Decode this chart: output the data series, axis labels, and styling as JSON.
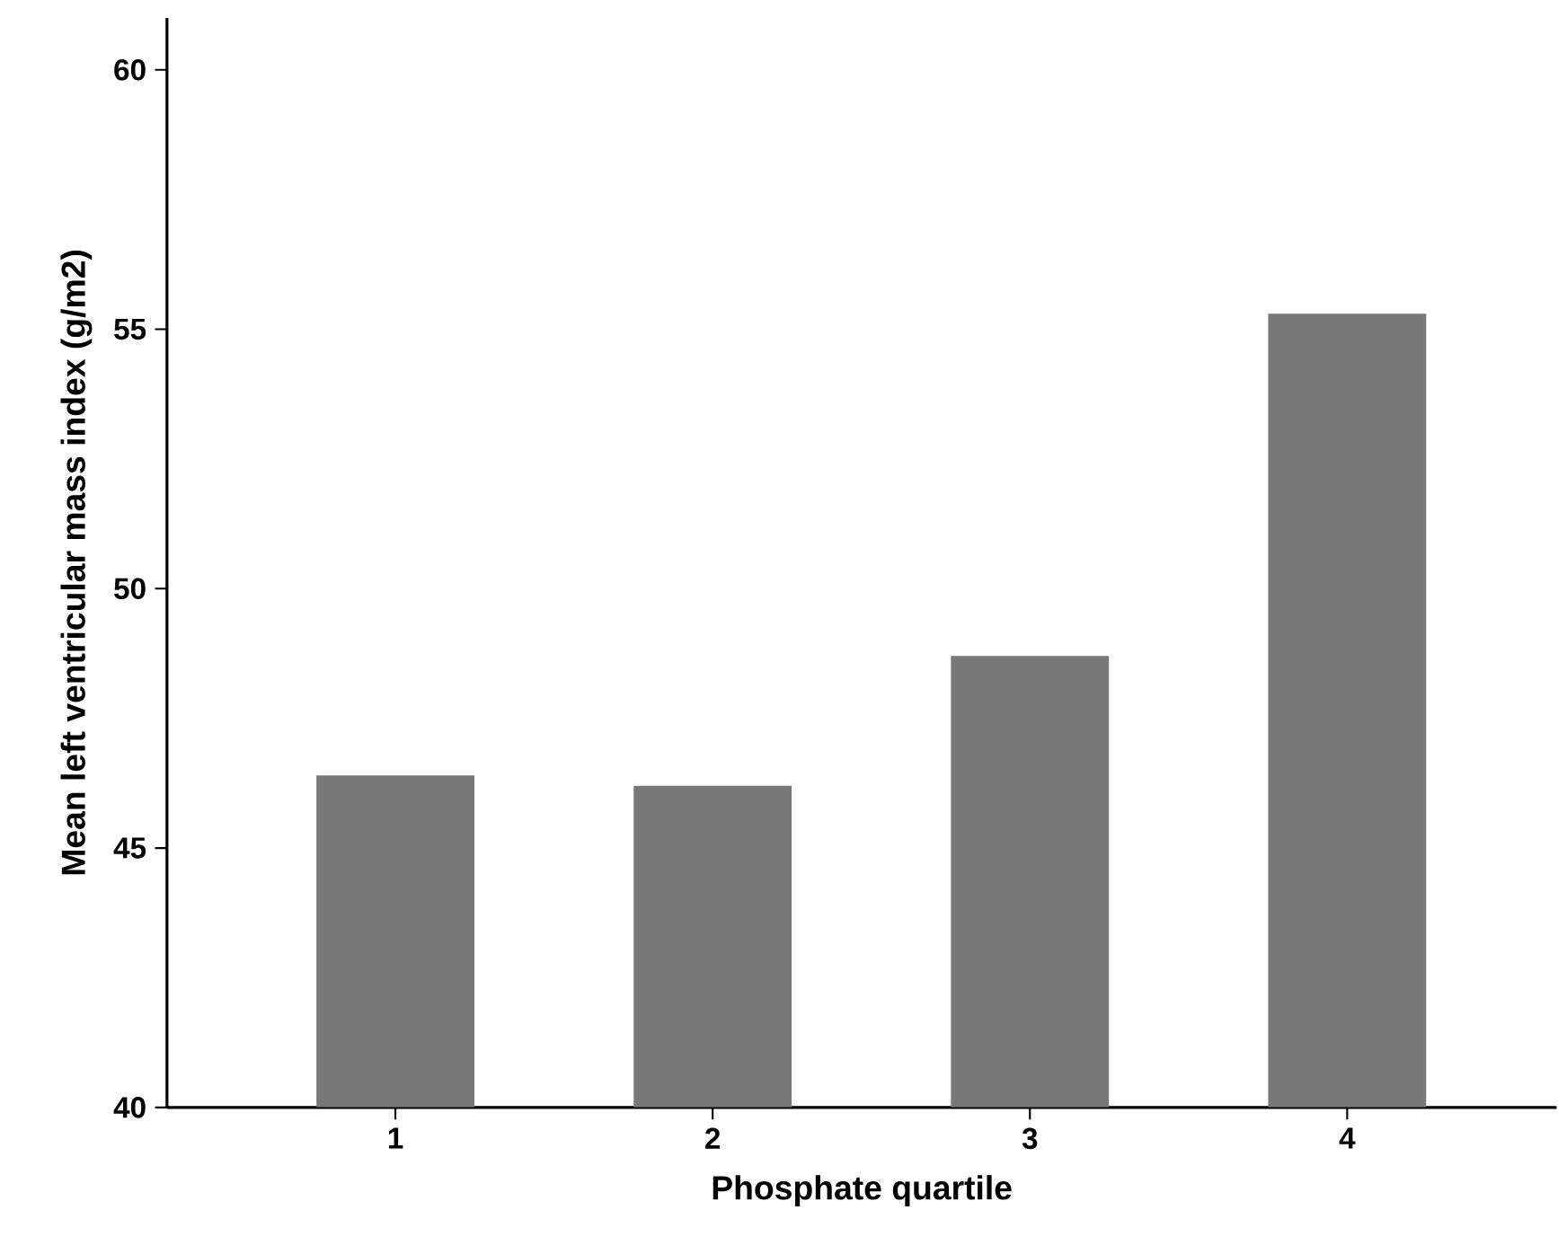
{
  "chart_data": {
    "type": "bar",
    "xlabel": "Phosphate quartile",
    "ylabel": "Mean left ventricular mass index (g/m2)",
    "categories": [
      "1",
      "2",
      "3",
      "4"
    ],
    "values": [
      46.4,
      46.2,
      48.7,
      55.3
    ],
    "color": "#787878",
    "ylim": [
      40,
      61
    ],
    "yticks": [
      40,
      45,
      50,
      55,
      60
    ],
    "grid": false
  }
}
